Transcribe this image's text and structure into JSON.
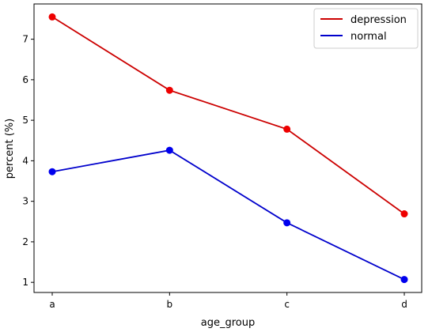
{
  "chart_data": {
    "type": "line",
    "categories": [
      "a",
      "b",
      "c",
      "d"
    ],
    "series": [
      {
        "name": "depression",
        "values": [
          7.55,
          5.74,
          4.78,
          2.69
        ],
        "color": "#cc0000",
        "marker_color": "#ee0000"
      },
      {
        "name": "normal",
        "values": [
          3.73,
          4.26,
          2.47,
          1.07
        ],
        "color": "#0000cc",
        "marker_color": "#0000ee"
      }
    ],
    "title": "",
    "xlabel": "age_group",
    "ylabel": "percent (%)",
    "yticks": [
      1,
      2,
      3,
      4,
      5,
      6,
      7
    ],
    "ylim": [
      0.75,
      7.87
    ],
    "grid": false,
    "legend_position": "top-right"
  }
}
